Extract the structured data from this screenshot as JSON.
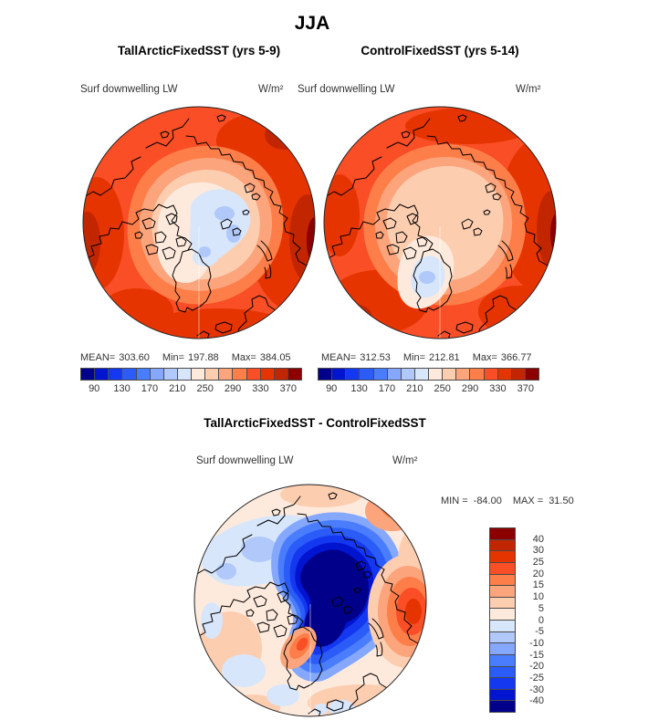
{
  "title": "JJA",
  "palette": [
    "#00008b",
    "#0114cf",
    "#1438f0",
    "#2b5cf8",
    "#4a7dfd",
    "#85a8fd",
    "#b0c8fa",
    "#d8e6fb",
    "#fdeadd",
    "#fdcdb0",
    "#fca47c",
    "#fd7e49",
    "#f94e26",
    "#e63400",
    "#c22600",
    "#8c0000"
  ],
  "panel_left": {
    "title": "TallArcticFixedSST (yrs 5-9)",
    "field": "Surf downwelling LW",
    "units": "W/m²",
    "mean_label": "MEAN=",
    "mean": "303.60",
    "min_label": "Min=",
    "min": "197.88",
    "max_label": "Max=",
    "max": "384.05"
  },
  "panel_right": {
    "title": "ControlFixedSST (yrs 5-14)",
    "field": "Surf downwelling LW",
    "units": "W/m²",
    "mean_label": "MEAN=",
    "mean": "312.53",
    "min_label": "Min=",
    "min": "212.81",
    "max_label": "Max=",
    "max": "366.77"
  },
  "panel_diff": {
    "title": "TallArcticFixedSST - ControlFixedSST",
    "field": "Surf downwelling LW",
    "units": "W/m²",
    "min_label": "MIN =",
    "min": "-84.00",
    "max_label": "MAX =",
    "max": "31.50"
  },
  "colorbar_abs": {
    "reverse": false,
    "tick_step": 2,
    "ticks": [
      "90",
      "130",
      "170",
      "210",
      "250",
      "290",
      "330",
      "370"
    ]
  },
  "colorbar_diff": {
    "reverse": true,
    "tick_step": 1,
    "ticks": [
      "40",
      "30",
      "25",
      "20",
      "15",
      "10",
      "5",
      "0",
      "-5",
      "-10",
      "-15",
      "-20",
      "-25",
      "-30",
      "-40"
    ]
  },
  "chart_data": [
    {
      "type": "heatmap",
      "panel": "left",
      "title": "TallArcticFixedSST (yrs 5-9)",
      "season": "JJA",
      "variable": "Surf downwelling LW",
      "units": "W/m²",
      "projection": "north-polar-stereographic",
      "mean": 303.6,
      "min": 197.88,
      "max": 384.05,
      "contour_levels": [
        90,
        110,
        130,
        150,
        170,
        190,
        210,
        230,
        250,
        270,
        290,
        310,
        330,
        350,
        370
      ],
      "tick_labels": [
        90,
        130,
        170,
        210,
        250,
        290,
        330,
        370
      ],
      "legend_position": "bottom",
      "description": "High values 310-380 W/m2 (red/orange) around sub-Arctic rim, decreasing inward; pale blue minimum 210-250 W/m2 over central Arctic Ocean"
    },
    {
      "type": "heatmap",
      "panel": "right",
      "title": "ControlFixedSST (yrs 5-14)",
      "season": "JJA",
      "variable": "Surf downwelling LW",
      "units": "W/m²",
      "projection": "north-polar-stereographic",
      "mean": 312.53,
      "min": 212.81,
      "max": 366.77,
      "contour_levels": [
        90,
        110,
        130,
        150,
        170,
        190,
        210,
        230,
        250,
        270,
        290,
        310,
        330,
        350,
        370
      ],
      "tick_labels": [
        90,
        130,
        170,
        210,
        250,
        290,
        330,
        370
      ],
      "legend_position": "bottom",
      "description": "Red/orange rim with broad pale-peach central Arctic (250-290 W/m2); small pale-blue minimum over Greenland ice sheet"
    },
    {
      "type": "heatmap",
      "panel": "difference",
      "title": "TallArcticFixedSST - ControlFixedSST",
      "season": "JJA",
      "variable": "Surf downwelling LW",
      "units": "W/m²",
      "projection": "north-polar-stereographic",
      "min": -84.0,
      "max": 31.5,
      "contour_levels": [
        -40,
        -30,
        -25,
        -20,
        -15,
        -10,
        -5,
        0,
        5,
        10,
        15,
        20,
        25,
        30,
        40
      ],
      "legend_position": "right",
      "description": "Large negative anomaly (below -40 W/m2, dark navy) over central Arctic Ocean; positive anomalies up to +30/+40 over Barents/Siberian sector and southern Greenland; weak pale anomalies elsewhere"
    }
  ]
}
